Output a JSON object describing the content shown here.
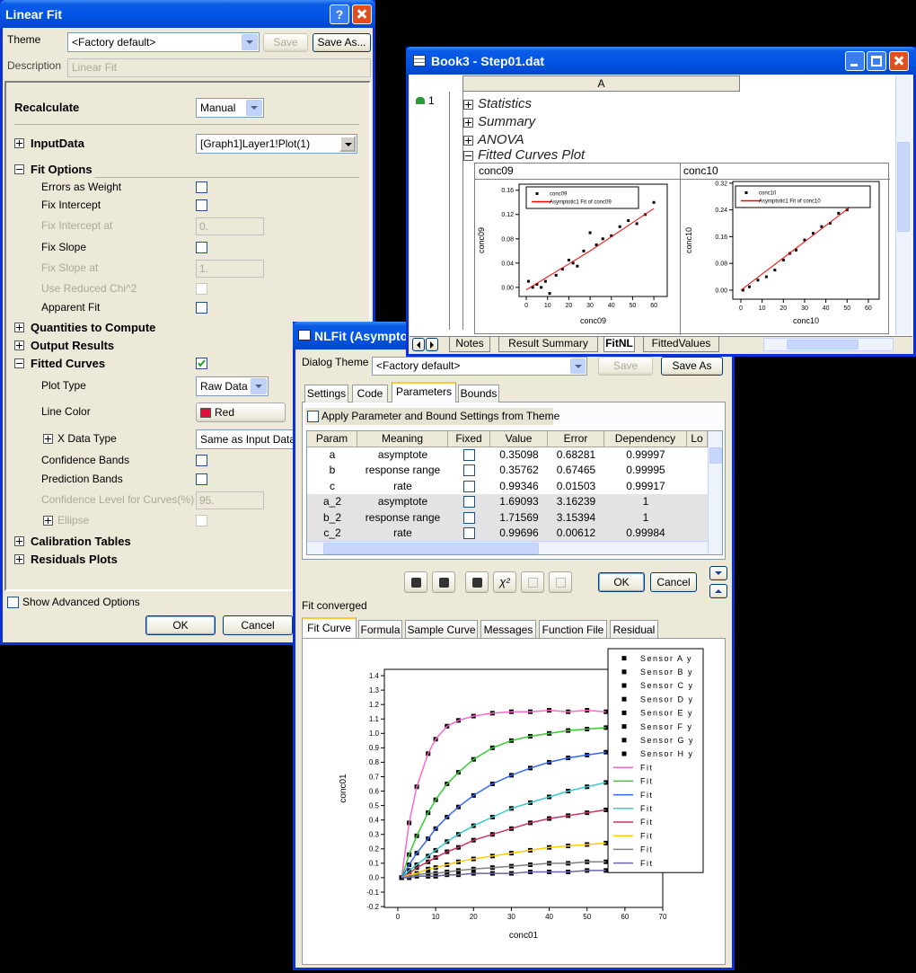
{
  "linear_fit": {
    "title": "Linear Fit",
    "help": "?",
    "theme_label": "Theme",
    "theme_value": "<Factory default>",
    "save": "Save",
    "save_as": "Save As...",
    "description_label": "Description",
    "description_value": "Linear Fit",
    "rows": [
      {
        "label": "Recalculate",
        "kind": "header",
        "control": "combo",
        "value": "Manual"
      },
      {
        "label": "InputData",
        "kind": "header",
        "expanded": false,
        "control": "combo",
        "value": "[Graph1]Layer1!Plot(1)"
      },
      {
        "label": "Fit Options",
        "kind": "header",
        "expanded": true
      },
      {
        "label": "Errors as Weight",
        "kind": "item",
        "control": "checkbox",
        "checked": false
      },
      {
        "label": "Fix Intercept",
        "kind": "item",
        "control": "checkbox",
        "checked": false
      },
      {
        "label": "Fix Intercept at",
        "kind": "disabled",
        "control": "edit",
        "value": "0."
      },
      {
        "label": "Fix Slope",
        "kind": "item",
        "control": "checkbox",
        "checked": false
      },
      {
        "label": "Fix Slope at",
        "kind": "disabled",
        "control": "edit",
        "value": "1."
      },
      {
        "label": "Use Reduced Chi^2",
        "kind": "disabled",
        "control": "checkbox",
        "checked": false
      },
      {
        "label": "Apparent Fit",
        "kind": "item",
        "control": "checkbox",
        "checked": false
      },
      {
        "label": "Quantities to Compute",
        "kind": "header",
        "expanded": false
      },
      {
        "label": "Output Results",
        "kind": "header",
        "expanded": false
      },
      {
        "label": "Fitted Curves",
        "kind": "header",
        "expanded": true,
        "control": "checkbox",
        "checked": true
      },
      {
        "label": "Plot Type",
        "kind": "item",
        "control": "combo",
        "value": "Raw Data"
      },
      {
        "label": "Line Color",
        "kind": "item",
        "control": "color",
        "value": "Red",
        "color": "#e0103c"
      },
      {
        "label": "X Data Type",
        "kind": "item",
        "expanded": false,
        "control": "combo",
        "value": "Same as Input Data"
      },
      {
        "label": "Confidence Bands",
        "kind": "item",
        "control": "checkbox",
        "checked": false
      },
      {
        "label": "Prediction Bands",
        "kind": "item",
        "control": "checkbox",
        "checked": false
      },
      {
        "label": "Confidence Level for Curves(%)",
        "kind": "disabled",
        "control": "edit",
        "value": "95."
      },
      {
        "label": "Ellipse",
        "kind": "disabled",
        "expanded": false,
        "control": "checkbox",
        "checked": false
      },
      {
        "label": "Calibration Tables",
        "kind": "header",
        "expanded": false
      },
      {
        "label": "Residuals Plots",
        "kind": "header",
        "expanded": false
      }
    ],
    "show_advanced": "Show Advanced Options",
    "ok": "OK",
    "cancel": "Cancel"
  },
  "workbook": {
    "title": "Book3 - Step01.dat",
    "column": "A",
    "row": "1",
    "tree": [
      "Statistics",
      "Summary",
      "ANOVA",
      "Fitted Curves Plot"
    ],
    "tree_expanded": [
      false,
      false,
      false,
      true
    ],
    "tabs": [
      "Notes",
      "Result Summary",
      "FitNL",
      "FittedValues"
    ],
    "active_tab": 2,
    "charts": [
      {
        "type": "scatter",
        "title": "conc09",
        "x_label": "conc09",
        "y_label": "conc09",
        "xlim": [
          -3.4,
          66.3
        ],
        "ylim": [
          -0.015,
          0.17
        ],
        "xticks": [
          0,
          10,
          20,
          30,
          40,
          50,
          60
        ],
        "yticks": [
          {
            "value": 0,
            "label": "0.00"
          },
          {
            "value": 0.04,
            "label": "0.04"
          },
          {
            "value": 0.08,
            "label": "0.08"
          },
          {
            "value": 0.12,
            "label": "0.12"
          },
          {
            "value": 0.16,
            "label": "0.16"
          }
        ],
        "legend": "upper left",
        "series": [
          {
            "name": "conc09",
            "color": "#000000",
            "style": "marker",
            "x": [
              1,
              3,
              5,
              7,
              9,
              11,
              14,
              17,
              20,
              22,
              24,
              27,
              30,
              33,
              36,
              40,
              44,
              48,
              52,
              56,
              60
            ],
            "values": [
              0.01,
              0,
              0.005,
              0,
              0.01,
              -0.01,
              0.02,
              0.03,
              0.045,
              0.04,
              0.035,
              0.06,
              0.09,
              0.07,
              0.08,
              0.085,
              0.1,
              0.11,
              0.105,
              0.12,
              0.14
            ]
          },
          {
            "name": "Asymptotic1 Fit of conc09",
            "color": "#ff0000",
            "style": "line",
            "x": [
              0,
              30,
              60
            ],
            "values": [
              -0.004,
              0.06,
              0.13
            ]
          }
        ]
      },
      {
        "type": "scatter",
        "title": "conc10",
        "x_label": "conc10",
        "y_label": "conc10",
        "xlim": [
          -3.8,
          65.1
        ],
        "ylim": [
          -0.027,
          0.325
        ],
        "xticks": [
          0,
          10,
          20,
          30,
          40,
          50,
          60
        ],
        "yticks": [
          {
            "value": 0,
            "label": "0.00"
          },
          {
            "value": 0.08,
            "label": "0.08"
          },
          {
            "value": 0.16,
            "label": "0.16"
          },
          {
            "value": 0.24,
            "label": "0.24"
          },
          {
            "value": 0.32,
            "label": "0.32"
          }
        ],
        "legend": "upper left",
        "series": [
          {
            "name": "conc10",
            "color": "#000000",
            "style": "marker",
            "x": [
              1,
              4,
              8,
              12,
              16,
              20,
              23,
              26,
              30,
              34,
              38,
              42,
              46,
              50,
              54,
              57,
              60
            ],
            "values": [
              0,
              0.01,
              0.03,
              0.04,
              0.06,
              0.09,
              0.11,
              0.12,
              0.15,
              0.17,
              0.19,
              0.2,
              0.23,
              0.24,
              0.26,
              0.28,
              0.28
            ]
          },
          {
            "name": "Asymptotic1 Fit of conc10",
            "color": "#ff0000",
            "style": "line",
            "x": [
              0,
              30,
              60
            ],
            "values": [
              0,
              0.145,
              0.29
            ]
          }
        ]
      }
    ]
  },
  "nlfit": {
    "title": "NLFit (Asympto",
    "theme_label": "Dialog Theme",
    "theme_value": "<Factory default>",
    "save": "Save",
    "save_as": "Save As",
    "tabs": [
      "Settings",
      "Code",
      "Parameters",
      "Bounds"
    ],
    "active_tab": 2,
    "apply_theme": "Apply Parameter and Bound Settings from Theme",
    "table": {
      "columns": [
        "Param",
        "Meaning",
        "Fixed",
        "Value",
        "Error",
        "Dependency",
        "Lo"
      ],
      "rows": [
        [
          "a",
          "asymptote",
          false,
          0.35098,
          0.68281,
          0.99997
        ],
        [
          "b",
          "response range",
          false,
          0.35762,
          0.67465,
          0.99995
        ],
        [
          "c",
          "rate",
          false,
          0.99346,
          0.01503,
          0.99917
        ],
        [
          "a_2",
          "asymptote",
          false,
          1.69093,
          3.16239,
          1
        ],
        [
          "b_2",
          "response range",
          false,
          1.71569,
          3.15394,
          1
        ],
        [
          "c_2",
          "rate",
          false,
          0.99696,
          0.00612,
          0.99984
        ]
      ]
    },
    "chi": "χ²",
    "ok": "OK",
    "cancel": "Cancel",
    "status": "Fit converged",
    "result_tabs": [
      "Fit Curve",
      "Formula",
      "Sample Curve",
      "Messages",
      "Function File",
      "Residual"
    ],
    "active_result_tab": 0,
    "chart": {
      "type": "scatter",
      "x_label": "conc01",
      "y_label": "conc01",
      "xlim": [
        -3.56,
        70
      ],
      "ylim": [
        -0.206,
        1.444
      ],
      "xticks": [
        0,
        10,
        20,
        30,
        40,
        50,
        60,
        70
      ],
      "yticks": [
        -0.2,
        -0.1,
        {
          "value": 0,
          "label": "0.0"
        },
        0.1,
        0.2,
        0.3,
        0.4,
        0.5,
        0.6,
        0.7,
        0.8,
        0.9,
        {
          "value": 1,
          "label": "1.0"
        },
        1.1,
        1.2,
        1.3,
        1.4
      ],
      "legend": "upper right",
      "x": [
        1,
        3,
        5,
        8,
        10,
        13,
        16,
        20,
        25,
        30,
        35,
        40,
        45,
        50,
        55
      ],
      "series": [
        {
          "name": "Sensor A y",
          "color": "#000000",
          "style": "marker",
          "values": [
            0,
            0.38,
            0.63,
            0.86,
            0.96,
            1.05,
            1.09,
            1.12,
            1.14,
            1.15,
            1.15,
            1.16,
            1.15,
            1.16,
            1.15
          ]
        },
        {
          "name": "Sensor B y",
          "color": "#000000",
          "style": "marker",
          "values": [
            0,
            0.16,
            0.29,
            0.45,
            0.54,
            0.65,
            0.73,
            0.82,
            0.9,
            0.95,
            0.98,
            1,
            1.02,
            1.03,
            1.04
          ]
        },
        {
          "name": "Sensor C y",
          "color": "#000000",
          "style": "marker",
          "values": [
            0,
            0.09,
            0.17,
            0.27,
            0.34,
            0.42,
            0.49,
            0.57,
            0.65,
            0.71,
            0.76,
            0.8,
            0.83,
            0.85,
            0.87
          ]
        },
        {
          "name": "Sensor D y",
          "color": "#000000",
          "style": "marker",
          "values": [
            0,
            0.05,
            0.09,
            0.15,
            0.19,
            0.25,
            0.3,
            0.36,
            0.42,
            0.48,
            0.52,
            0.56,
            0.6,
            0.63,
            0.66
          ]
        },
        {
          "name": "Sensor E y",
          "color": "#000000",
          "style": "marker",
          "values": [
            0,
            0.03,
            0.07,
            0.11,
            0.14,
            0.18,
            0.21,
            0.26,
            0.3,
            0.34,
            0.38,
            0.41,
            0.43,
            0.45,
            0.47
          ]
        },
        {
          "name": "Sensor F y",
          "color": "#000000",
          "style": "marker",
          "values": [
            0,
            0.02,
            0.03,
            0.06,
            0.07,
            0.09,
            0.11,
            0.13,
            0.15,
            0.17,
            0.19,
            0.21,
            0.22,
            0.23,
            0.24
          ]
        },
        {
          "name": "Sensor G y",
          "color": "#000000",
          "style": "marker",
          "values": [
            0,
            0.01,
            0.02,
            0.03,
            0.03,
            0.04,
            0.05,
            0.06,
            0.07,
            0.08,
            0.09,
            0.1,
            0.1,
            0.11,
            0.11
          ]
        },
        {
          "name": "Sensor H y",
          "color": "#000000",
          "style": "marker",
          "values": [
            0,
            0,
            0.01,
            0.01,
            0.01,
            0.02,
            0.02,
            0.03,
            0.03,
            0.03,
            0.04,
            0.04,
            0.04,
            0.05,
            0.05
          ]
        },
        {
          "name": "Fit",
          "color": "#ff66cc",
          "style": "line",
          "values": [
            0,
            0.38,
            0.63,
            0.86,
            0.96,
            1.05,
            1.09,
            1.12,
            1.14,
            1.15,
            1.15,
            1.16,
            1.15,
            1.16,
            1.15
          ]
        },
        {
          "name": "Fit",
          "color": "#33cc33",
          "style": "line",
          "values": [
            0,
            0.16,
            0.29,
            0.45,
            0.54,
            0.65,
            0.73,
            0.82,
            0.9,
            0.95,
            0.98,
            1,
            1.02,
            1.03,
            1.04
          ]
        },
        {
          "name": "Fit",
          "color": "#3366ff",
          "style": "line",
          "values": [
            0,
            0.09,
            0.17,
            0.27,
            0.34,
            0.42,
            0.49,
            0.57,
            0.65,
            0.71,
            0.76,
            0.8,
            0.83,
            0.85,
            0.87
          ]
        },
        {
          "name": "Fit",
          "color": "#33cccc",
          "style": "line",
          "values": [
            0,
            0.05,
            0.09,
            0.15,
            0.19,
            0.25,
            0.3,
            0.36,
            0.42,
            0.48,
            0.52,
            0.56,
            0.6,
            0.63,
            0.66
          ]
        },
        {
          "name": "Fit",
          "color": "#cc3366",
          "style": "line",
          "values": [
            0,
            0.03,
            0.07,
            0.11,
            0.14,
            0.18,
            0.21,
            0.26,
            0.3,
            0.34,
            0.38,
            0.41,
            0.43,
            0.45,
            0.47
          ]
        },
        {
          "name": "Fit",
          "color": "#ffcc00",
          "style": "line",
          "values": [
            0,
            0.02,
            0.03,
            0.06,
            0.07,
            0.09,
            0.11,
            0.13,
            0.15,
            0.17,
            0.19,
            0.21,
            0.22,
            0.23,
            0.24
          ]
        },
        {
          "name": "Fit",
          "color": "#808080",
          "style": "line",
          "values": [
            0,
            0.01,
            0.02,
            0.03,
            0.03,
            0.04,
            0.05,
            0.06,
            0.07,
            0.08,
            0.09,
            0.1,
            0.1,
            0.11,
            0.11
          ]
        },
        {
          "name": "Fit",
          "color": "#6666aa",
          "style": "line",
          "values": [
            0,
            0,
            0.01,
            0.01,
            0.01,
            0.02,
            0.02,
            0.03,
            0.03,
            0.03,
            0.04,
            0.04,
            0.04,
            0.05,
            0.05
          ]
        }
      ]
    }
  }
}
